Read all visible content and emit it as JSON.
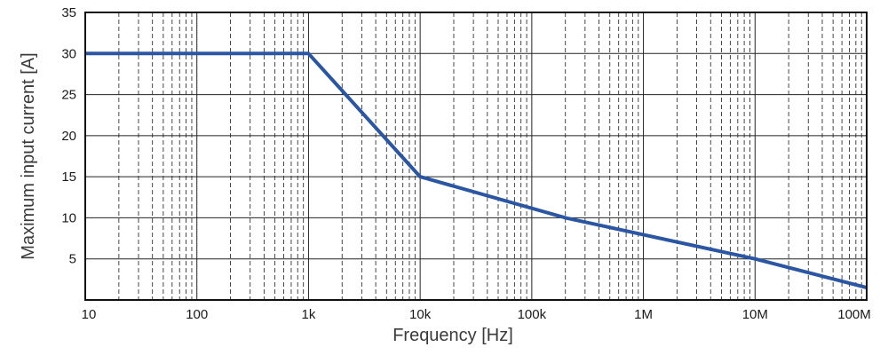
{
  "chart_data": {
    "type": "line",
    "title": "",
    "xlabel": "Frequency [Hz]",
    "ylabel": "Maximum input current [A]",
    "x_scale": "log",
    "xlim": [
      10,
      100000000
    ],
    "ylim": [
      0,
      35
    ],
    "x_ticks": [
      {
        "value": 10,
        "label": "10"
      },
      {
        "value": 100,
        "label": "100"
      },
      {
        "value": 1000,
        "label": "1k"
      },
      {
        "value": 10000,
        "label": "10k"
      },
      {
        "value": 100000,
        "label": "100k"
      },
      {
        "value": 1000000,
        "label": "1M"
      },
      {
        "value": 10000000,
        "label": "10M"
      },
      {
        "value": 100000000,
        "label": "100M"
      }
    ],
    "y_ticks": [
      {
        "value": 5,
        "label": "5"
      },
      {
        "value": 10,
        "label": "10"
      },
      {
        "value": 15,
        "label": "15"
      },
      {
        "value": 20,
        "label": "20"
      },
      {
        "value": 25,
        "label": "25"
      },
      {
        "value": 30,
        "label": "30"
      },
      {
        "value": 35,
        "label": "35"
      }
    ],
    "grid": {
      "major": true,
      "minor": true,
      "minor_style": "dashed"
    },
    "series": [
      {
        "color": "#2a56a4",
        "x": [
          10,
          1000,
          10000,
          200000,
          10000000,
          100000000
        ],
        "y": [
          30,
          30,
          15,
          10,
          5,
          1.5
        ]
      }
    ]
  }
}
